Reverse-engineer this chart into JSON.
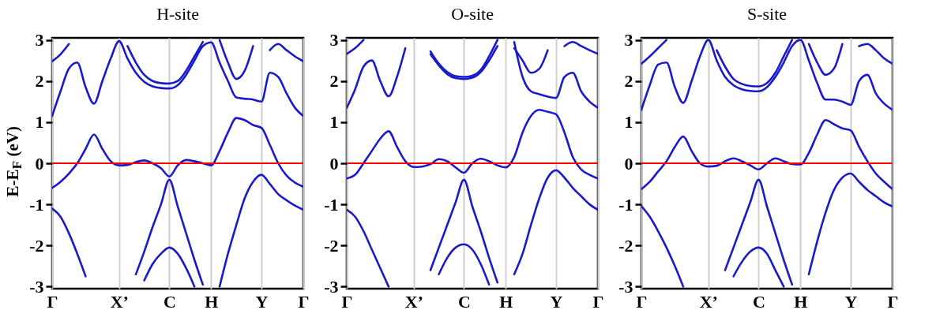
{
  "chart_data": [
    {
      "type": "line",
      "title": "H-site",
      "ylabel": "E-E$_{F}$ (eV)",
      "categories": [
        "Γ",
        null,
        null,
        null,
        null,
        null,
        null,
        null,
        "X’",
        null,
        null,
        null,
        null,
        null,
        "C",
        null,
        null,
        null,
        null,
        "H",
        null,
        null,
        null,
        null,
        null,
        "Y",
        null,
        null,
        null,
        null,
        "Γ"
      ],
      "ylim": [
        -3.05,
        3.05
      ],
      "yticks": [
        -3,
        -2,
        -1,
        0,
        1,
        2,
        3
      ],
      "grid": "x",
      "ref_lines": [
        {
          "axis": "y",
          "value": 0,
          "color": "#ff0000"
        }
      ],
      "series": [
        {
          "color": "#1a1acd",
          "values": [
            -1.1,
            -1.3,
            -1.7,
            -2.2,
            -2.75,
            null,
            null,
            null,
            null,
            null,
            null,
            null,
            null,
            null,
            null,
            null,
            null,
            null,
            null,
            null,
            null,
            null,
            null,
            null,
            null,
            null,
            null,
            null,
            null,
            null,
            null
          ]
        },
        {
          "color": "#1a1acd",
          "values": [
            null,
            null,
            null,
            null,
            null,
            null,
            null,
            null,
            null,
            null,
            null,
            -2.85,
            -2.45,
            -2.2,
            -2.05,
            -2.2,
            -2.55,
            -3.0,
            null,
            null,
            null,
            null,
            null,
            null,
            null,
            null,
            null,
            null,
            null,
            null,
            null
          ]
        },
        {
          "color": "#1a1acd",
          "values": [
            null,
            null,
            null,
            null,
            null,
            null,
            null,
            null,
            null,
            null,
            -2.7,
            -2.15,
            -1.55,
            -1.0,
            -0.4,
            -1.05,
            -1.7,
            -2.35,
            -2.95,
            null,
            null,
            null,
            null,
            null,
            null,
            null,
            null,
            null,
            null,
            null,
            null
          ]
        },
        {
          "color": "#1a1acd",
          "values": [
            null,
            null,
            null,
            null,
            null,
            null,
            null,
            null,
            null,
            null,
            null,
            null,
            null,
            null,
            null,
            null,
            null,
            null,
            null,
            null,
            -3.0,
            -2.2,
            -1.5,
            -0.85,
            -0.45,
            -0.28,
            -0.5,
            -0.75,
            -0.9,
            -1.03,
            -1.13
          ]
        },
        {
          "color": "#1a1acd",
          "values": [
            -0.6,
            -0.45,
            -0.25,
            0.0,
            0.35,
            0.7,
            0.35,
            0.05,
            -0.05,
            -0.04,
            0.03,
            0.07,
            0.0,
            -0.12,
            -0.32,
            -0.05,
            0.08,
            0.05,
            0.0,
            -0.05,
            0.3,
            0.75,
            1.1,
            1.05,
            0.93,
            0.86,
            0.45,
            0.0,
            -0.3,
            -0.47,
            -0.57
          ]
        },
        {
          "color": "#1a1acd",
          "values": [
            1.15,
            1.75,
            2.3,
            2.45,
            1.85,
            1.45,
            2.0,
            2.55,
            2.97,
            2.55,
            2.2,
            1.98,
            1.87,
            1.83,
            1.82,
            1.9,
            2.15,
            2.5,
            2.85,
            2.94,
            2.45,
            2.0,
            1.6,
            1.57,
            1.55,
            1.5,
            2.2,
            2.1,
            1.7,
            1.35,
            1.15
          ]
        },
        {
          "color": "#1a1acd",
          "values": [
            null,
            null,
            null,
            null,
            null,
            null,
            null,
            null,
            null,
            2.85,
            2.45,
            2.15,
            2.0,
            1.95,
            1.94,
            2.0,
            2.25,
            2.6,
            2.95,
            null,
            null,
            null,
            null,
            null,
            null,
            null,
            null,
            null,
            null,
            null,
            null
          ]
        },
        {
          "color": "#1a1acd",
          "values": [
            2.48,
            2.65,
            2.9,
            null,
            null,
            null,
            null,
            null,
            null,
            null,
            null,
            null,
            null,
            null,
            null,
            null,
            null,
            null,
            null,
            null,
            null,
            null,
            null,
            null,
            null,
            null,
            null,
            null,
            null,
            null,
            null
          ]
        },
        {
          "color": "#1a1acd",
          "values": [
            null,
            null,
            null,
            null,
            null,
            null,
            null,
            null,
            null,
            null,
            null,
            null,
            null,
            null,
            null,
            null,
            null,
            null,
            null,
            null,
            3.0,
            2.45,
            2.05,
            2.25,
            2.85,
            null,
            null,
            null,
            null,
            null,
            null
          ]
        },
        {
          "color": "#1a1acd",
          "values": [
            null,
            null,
            null,
            null,
            null,
            null,
            null,
            null,
            null,
            null,
            null,
            null,
            null,
            null,
            null,
            null,
            null,
            null,
            null,
            null,
            null,
            null,
            null,
            null,
            null,
            null,
            2.75,
            2.9,
            2.75,
            2.6,
            2.48
          ]
        }
      ]
    },
    {
      "type": "line",
      "title": "O-site",
      "categories": [
        "Γ",
        null,
        null,
        null,
        null,
        null,
        null,
        null,
        "X’",
        null,
        null,
        null,
        null,
        null,
        "C",
        null,
        null,
        null,
        null,
        "H",
        null,
        null,
        null,
        null,
        null,
        "Y",
        null,
        null,
        null,
        null,
        "Γ"
      ],
      "ylim": [
        -3.05,
        3.05
      ],
      "yticks": [
        -3,
        -2,
        -1,
        0,
        1,
        2,
        3
      ],
      "grid": "x",
      "ref_lines": [
        {
          "axis": "y",
          "value": 0,
          "color": "#ff0000"
        }
      ],
      "series": [
        {
          "color": "#1a1acd",
          "values": [
            -1.13,
            -1.3,
            -1.65,
            -2.1,
            -2.55,
            -3.0,
            null,
            null,
            null,
            null,
            null,
            null,
            null,
            null,
            null,
            null,
            null,
            null,
            null,
            null,
            null,
            null,
            null,
            null,
            null,
            null,
            null,
            null,
            null,
            null,
            null
          ]
        },
        {
          "color": "#1a1acd",
          "values": [
            null,
            null,
            null,
            null,
            null,
            null,
            null,
            null,
            null,
            null,
            null,
            -2.7,
            -2.3,
            -2.05,
            -1.97,
            -2.1,
            -2.45,
            -2.95,
            null,
            null,
            null,
            null,
            null,
            null,
            null,
            null,
            null,
            null,
            null,
            null,
            null
          ]
        },
        {
          "color": "#1a1acd",
          "values": [
            null,
            null,
            null,
            null,
            null,
            null,
            null,
            null,
            null,
            null,
            -2.6,
            -2.05,
            -1.5,
            -0.95,
            -0.4,
            -1.05,
            -1.65,
            -2.3,
            -2.9,
            null,
            null,
            null,
            null,
            null,
            null,
            null,
            null,
            null,
            null,
            null,
            null
          ]
        },
        {
          "color": "#1a1acd",
          "values": [
            null,
            null,
            null,
            null,
            null,
            null,
            null,
            null,
            null,
            null,
            null,
            null,
            null,
            null,
            null,
            null,
            null,
            null,
            null,
            null,
            -2.7,
            -2.2,
            -1.5,
            -0.85,
            -0.35,
            -0.17,
            -0.35,
            -0.6,
            -0.8,
            -1.0,
            -1.13
          ]
        },
        {
          "color": "#1a1acd",
          "values": [
            -0.37,
            -0.28,
            0.0,
            0.3,
            0.6,
            0.78,
            0.4,
            0.05,
            -0.09,
            -0.08,
            -0.02,
            0.1,
            0.05,
            -0.1,
            -0.23,
            0.0,
            0.11,
            0.05,
            -0.05,
            -0.1,
            0.15,
            0.75,
            1.15,
            1.3,
            1.25,
            1.19,
            0.75,
            0.15,
            -0.15,
            -0.28,
            -0.37
          ]
        },
        {
          "color": "#1a1acd",
          "values": [
            1.35,
            1.8,
            2.35,
            2.5,
            2.0,
            1.63,
            2.1,
            2.8,
            null,
            null,
            null,
            null,
            null,
            null,
            null,
            null,
            null,
            null,
            null,
            null,
            2.95,
            2.1,
            1.75,
            1.68,
            1.62,
            1.59,
            2.1,
            2.2,
            1.75,
            1.5,
            1.35
          ]
        },
        {
          "color": "#1a1acd",
          "values": [
            null,
            null,
            null,
            null,
            null,
            null,
            null,
            null,
            null,
            null,
            2.65,
            2.38,
            2.17,
            2.07,
            2.05,
            2.08,
            2.22,
            2.5,
            2.85,
            null,
            null,
            null,
            null,
            null,
            null,
            null,
            null,
            null,
            null,
            null,
            null
          ]
        },
        {
          "color": "#1a1acd",
          "values": [
            null,
            null,
            null,
            null,
            null,
            null,
            null,
            null,
            null,
            null,
            2.72,
            2.42,
            2.22,
            2.12,
            2.1,
            2.13,
            2.27,
            2.6,
            3.0,
            null,
            null,
            null,
            null,
            null,
            null,
            null,
            null,
            null,
            null,
            null,
            null
          ]
        },
        {
          "color": "#1a1acd",
          "values": [
            2.66,
            2.8,
            3.0,
            null,
            null,
            null,
            null,
            null,
            null,
            null,
            null,
            null,
            null,
            null,
            null,
            null,
            null,
            null,
            null,
            null,
            null,
            null,
            null,
            null,
            null,
            null,
            null,
            null,
            null,
            null,
            null
          ]
        },
        {
          "color": "#1a1acd",
          "values": [
            null,
            null,
            null,
            null,
            null,
            null,
            null,
            null,
            null,
            null,
            null,
            null,
            null,
            null,
            null,
            null,
            null,
            null,
            null,
            null,
            2.8,
            2.5,
            2.2,
            2.3,
            2.75,
            null,
            null,
            null,
            null,
            null,
            null
          ]
        },
        {
          "color": "#1a1acd",
          "values": [
            null,
            null,
            null,
            null,
            null,
            null,
            null,
            null,
            null,
            null,
            null,
            null,
            null,
            null,
            null,
            null,
            null,
            null,
            null,
            null,
            null,
            null,
            null,
            null,
            null,
            null,
            2.85,
            2.95,
            2.85,
            2.75,
            2.66
          ]
        }
      ]
    },
    {
      "type": "line",
      "title": "S-site",
      "categories": [
        "Γ",
        null,
        null,
        null,
        null,
        null,
        null,
        null,
        "X’",
        null,
        null,
        null,
        null,
        null,
        "C",
        null,
        null,
        null,
        null,
        "H",
        null,
        null,
        null,
        null,
        null,
        "Y",
        null,
        null,
        null,
        null,
        "Γ"
      ],
      "ylim": [
        -3.05,
        3.05
      ],
      "yticks": [
        -3,
        -2,
        -1,
        0,
        1,
        2,
        3
      ],
      "grid": "x",
      "ref_lines": [
        {
          "axis": "y",
          "value": 0,
          "color": "#ff0000"
        }
      ],
      "series": [
        {
          "color": "#1a1acd",
          "values": [
            -1.04,
            -1.3,
            -1.65,
            -2.05,
            -2.5,
            -3.0,
            null,
            null,
            null,
            null,
            null,
            null,
            null,
            null,
            null,
            null,
            null,
            null,
            null,
            null,
            null,
            null,
            null,
            null,
            null,
            null,
            null,
            null,
            null,
            null,
            null
          ]
        },
        {
          "color": "#1a1acd",
          "values": [
            null,
            null,
            null,
            null,
            null,
            null,
            null,
            null,
            null,
            null,
            null,
            -2.75,
            -2.4,
            -2.15,
            -2.05,
            -2.2,
            -2.6,
            -3.0,
            null,
            null,
            null,
            null,
            null,
            null,
            null,
            null,
            null,
            null,
            null,
            null,
            null
          ]
        },
        {
          "color": "#1a1acd",
          "values": [
            null,
            null,
            null,
            null,
            null,
            null,
            null,
            null,
            null,
            null,
            -2.6,
            -2.05,
            -1.5,
            -0.95,
            -0.4,
            -1.05,
            -1.7,
            -2.35,
            -2.95,
            null,
            null,
            null,
            null,
            null,
            null,
            null,
            null,
            null,
            null,
            null,
            null
          ]
        },
        {
          "color": "#1a1acd",
          "values": [
            null,
            null,
            null,
            null,
            null,
            null,
            null,
            null,
            null,
            null,
            null,
            null,
            null,
            null,
            null,
            null,
            null,
            null,
            null,
            null,
            -2.7,
            -1.9,
            -1.2,
            -0.65,
            -0.35,
            -0.25,
            -0.45,
            -0.65,
            -0.8,
            -0.95,
            -1.05
          ]
        },
        {
          "color": "#1a1acd",
          "values": [
            -0.63,
            -0.45,
            -0.2,
            0.05,
            0.4,
            0.65,
            0.3,
            0.0,
            -0.08,
            -0.06,
            0.05,
            0.12,
            0.05,
            -0.05,
            -0.15,
            0.0,
            0.12,
            0.05,
            -0.02,
            -0.03,
            0.25,
            0.7,
            1.05,
            0.95,
            0.85,
            0.8,
            0.4,
            0.05,
            -0.25,
            -0.45,
            -0.63
          ]
        },
        {
          "color": "#1a1acd",
          "values": [
            1.3,
            1.9,
            2.4,
            2.45,
            1.85,
            1.47,
            2.0,
            2.6,
            3.0,
            2.5,
            2.1,
            1.9,
            1.8,
            1.76,
            1.75,
            1.85,
            2.1,
            2.45,
            2.85,
            3.0,
            2.5,
            1.95,
            1.55,
            1.55,
            1.5,
            1.42,
            2.0,
            2.15,
            1.7,
            1.45,
            1.3
          ]
        },
        {
          "color": "#1a1acd",
          "values": [
            null,
            null,
            null,
            null,
            null,
            null,
            null,
            null,
            null,
            2.75,
            2.35,
            2.05,
            1.93,
            1.88,
            1.87,
            1.95,
            2.2,
            2.6,
            3.0,
            null,
            null,
            null,
            null,
            null,
            null,
            null,
            null,
            null,
            null,
            null,
            null
          ]
        },
        {
          "color": "#1a1acd",
          "values": [
            2.42,
            2.6,
            2.8,
            3.0,
            null,
            null,
            null,
            null,
            null,
            null,
            null,
            null,
            null,
            null,
            null,
            null,
            null,
            null,
            null,
            null,
            null,
            null,
            null,
            null,
            null,
            null,
            null,
            null,
            null,
            null,
            null
          ]
        },
        {
          "color": "#1a1acd",
          "values": [
            null,
            null,
            null,
            null,
            null,
            null,
            null,
            null,
            null,
            null,
            null,
            null,
            null,
            null,
            null,
            null,
            null,
            null,
            null,
            null,
            2.9,
            2.45,
            2.15,
            2.3,
            2.9,
            null,
            null,
            null,
            null,
            null,
            null
          ]
        },
        {
          "color": "#1a1acd",
          "values": [
            null,
            null,
            null,
            null,
            null,
            null,
            null,
            null,
            null,
            null,
            null,
            null,
            null,
            null,
            null,
            null,
            null,
            null,
            null,
            null,
            null,
            null,
            null,
            null,
            null,
            null,
            2.85,
            2.9,
            2.75,
            2.55,
            2.42
          ]
        }
      ]
    }
  ]
}
